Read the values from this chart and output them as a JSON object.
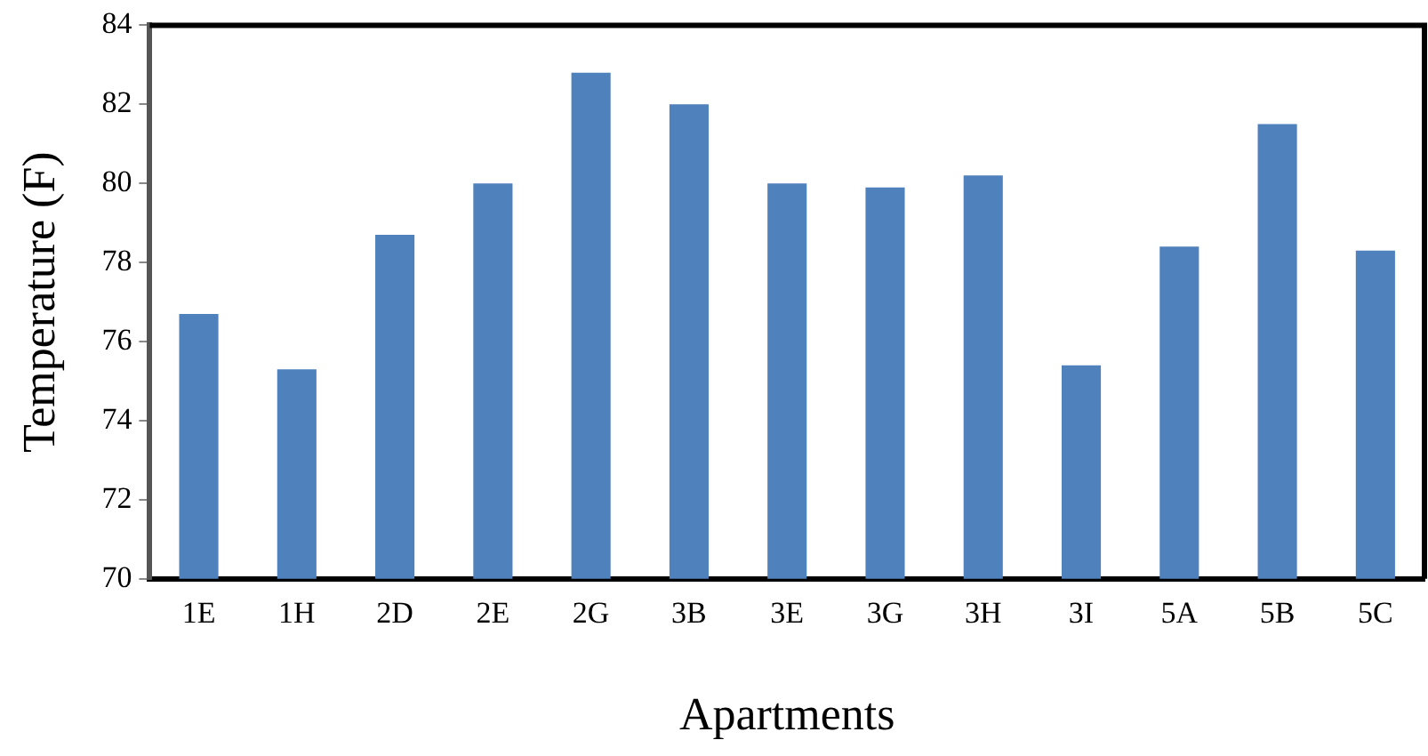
{
  "chart_data": {
    "type": "bar",
    "xlabel": "Apartments",
    "ylabel": "Temperature (F)",
    "categories": [
      "1E",
      "1H",
      "2D",
      "2E",
      "2G",
      "3B",
      "3E",
      "3G",
      "3H",
      "3I",
      "5A",
      "5B",
      "5C"
    ],
    "values": [
      76.7,
      75.3,
      78.7,
      80.0,
      82.8,
      82.0,
      80.0,
      79.9,
      80.2,
      75.4,
      78.4,
      81.5,
      78.3
    ],
    "color": "#4f81bd",
    "ylim": [
      70,
      84
    ],
    "yticks": [
      70,
      72,
      74,
      76,
      78,
      80,
      82,
      84
    ],
    "grid": false,
    "legend": false
  }
}
